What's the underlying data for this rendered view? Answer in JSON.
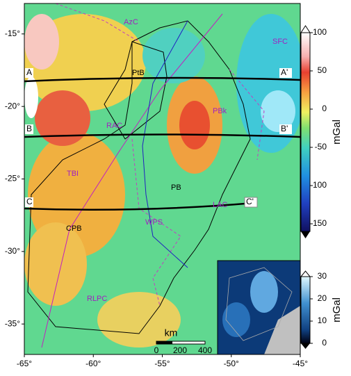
{
  "map": {
    "lon_ticks": [
      {
        "value": -65,
        "label": "-65°"
      },
      {
        "value": -60,
        "label": "-60°"
      },
      {
        "value": -55,
        "label": "-55°"
      },
      {
        "value": -50,
        "label": "-50°"
      },
      {
        "value": -45,
        "label": "-45°"
      }
    ],
    "lat_ticks": [
      {
        "value": -15,
        "label": "-15°"
      },
      {
        "value": -20,
        "label": "-20°"
      },
      {
        "value": -25,
        "label": "-25°"
      },
      {
        "value": -30,
        "label": "-30°"
      },
      {
        "value": -35,
        "label": "-35°"
      }
    ],
    "xlim": [
      -65,
      -45
    ],
    "ylim": [
      -37.1,
      -12.9
    ],
    "labels": {
      "azc": "AzC",
      "sfc": "SFC",
      "ptb": "PtB",
      "rac": "RAC",
      "pbk": "PBk",
      "tbi": "TBI",
      "pb": "PB",
      "lac": "LAC",
      "cpb": "CPB",
      "wps": "WPS",
      "rlpc": "RLPC"
    },
    "profiles": {
      "a": "A",
      "a2": "A'",
      "b": "B",
      "b2": "B'",
      "c": "C",
      "c2": "C'"
    },
    "scale_bar": {
      "unit": "km",
      "ticks": [
        "0",
        "200",
        "400"
      ]
    },
    "colorbar": {
      "label": "mGal",
      "lim": [
        -160,
        100
      ],
      "ticks": [
        100,
        50,
        0,
        -50,
        -100,
        -150
      ]
    },
    "inset_colorbar": {
      "label": "mGal",
      "lim": [
        0,
        30
      ],
      "ticks": [
        30,
        20,
        10,
        0
      ]
    }
  }
}
